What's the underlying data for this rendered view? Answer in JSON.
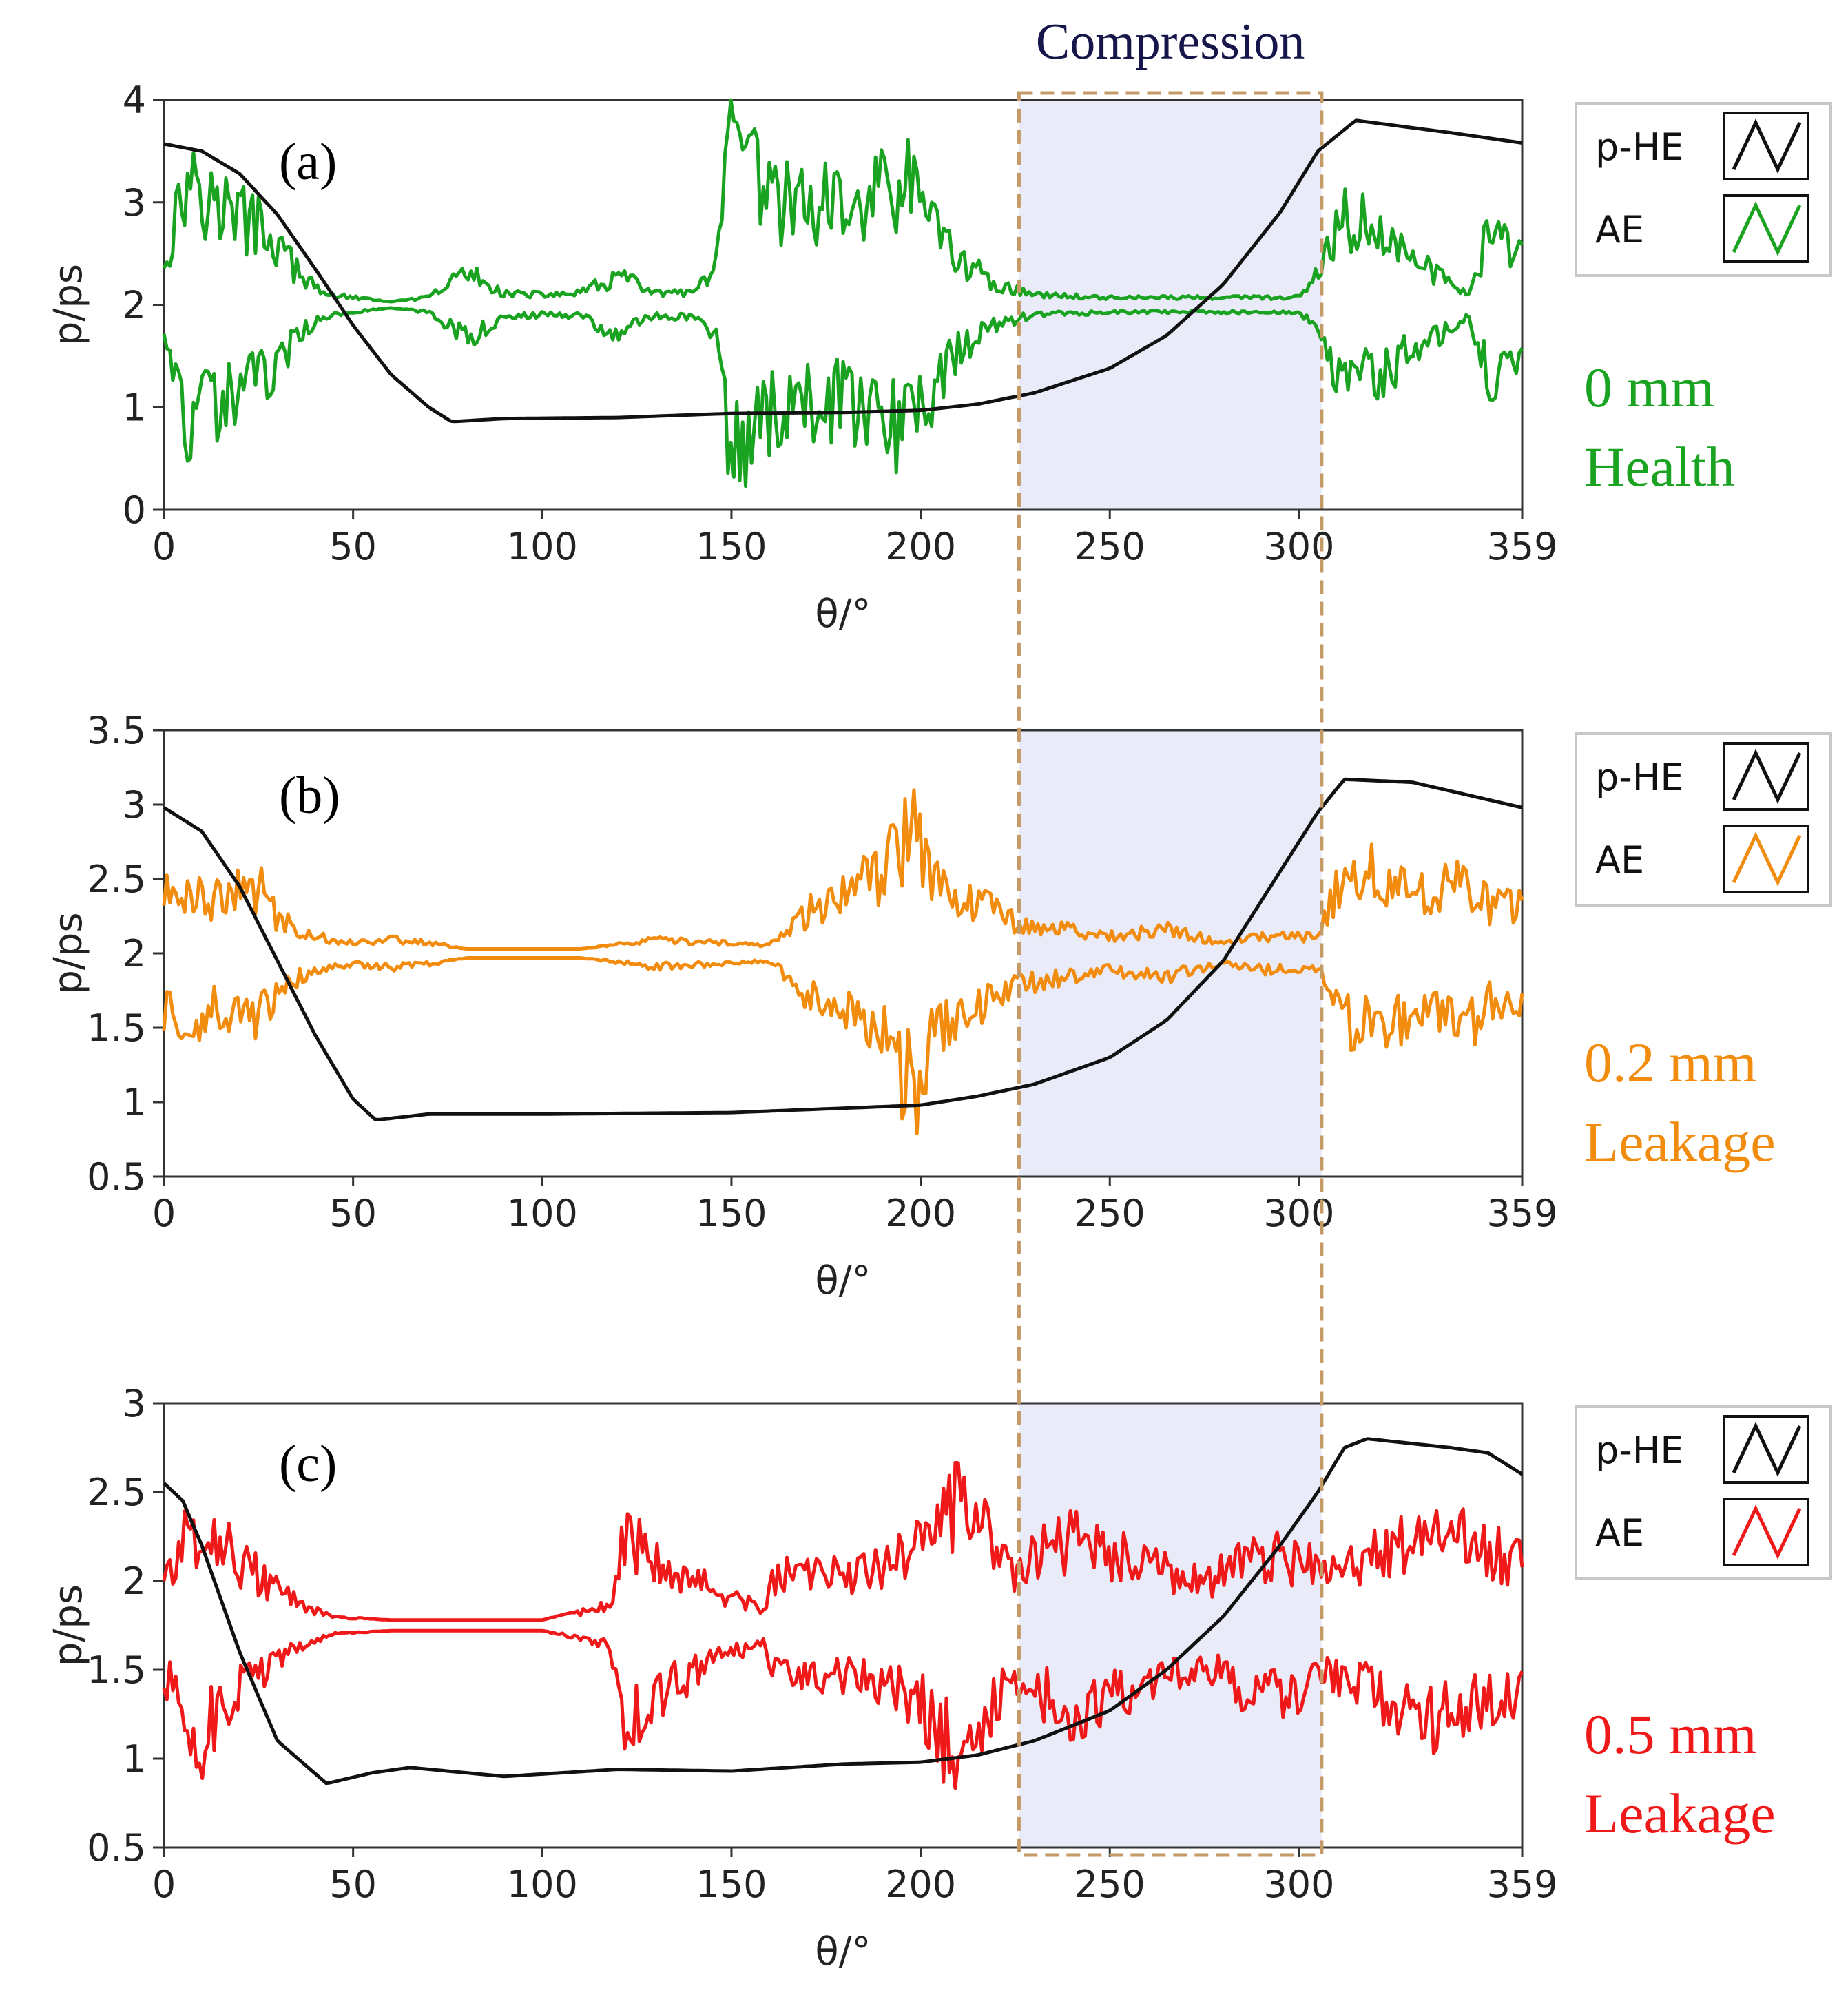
{
  "chart_data": [
    {
      "type": "line",
      "panel": "(a)",
      "condition": "0 mm",
      "state": "Health",
      "color": "#1aa321",
      "xlabel": "θ/°",
      "ylabel": "p/ps",
      "xlim": [
        0,
        359
      ],
      "ylim": [
        0,
        4
      ],
      "xticks": [
        "0",
        "50",
        "100",
        "150",
        "200",
        "250",
        "300",
        "359"
      ],
      "yticks": [
        "0",
        "1",
        "2",
        "3",
        "4"
      ],
      "legend": [
        "p-HE",
        "AE"
      ],
      "center": 2.0,
      "phe": {
        "x": [
          0,
          10,
          20,
          30,
          40,
          50,
          60,
          70,
          76,
          90,
          120,
          150,
          180,
          200,
          215,
          230,
          250,
          265,
          280,
          295,
          305,
          315,
          340,
          359
        ],
        "y": [
          3.57,
          3.5,
          3.28,
          2.88,
          2.35,
          1.8,
          1.32,
          1.0,
          0.86,
          0.89,
          0.9,
          0.94,
          0.95,
          0.97,
          1.03,
          1.14,
          1.38,
          1.7,
          2.2,
          2.9,
          3.5,
          3.8,
          3.68,
          3.58
        ]
      },
      "ae_env": {
        "x": [
          0,
          8,
          12,
          20,
          28,
          36,
          42,
          50,
          60,
          70,
          80,
          90,
          100,
          110,
          120,
          130,
          140,
          146,
          150,
          160,
          180,
          195,
          200,
          210,
          220,
          230,
          250,
          280,
          300,
          305,
          312,
          320,
          330,
          345,
          350,
          359
        ],
        "a": [
          0.5,
          1.7,
          1.2,
          1.0,
          0.8,
          0.3,
          0.1,
          0.05,
          0.0,
          0.05,
          0.35,
          0.1,
          0.08,
          0.1,
          0.3,
          0.1,
          0.1,
          0.4,
          1.85,
          1.2,
          1.1,
          1.4,
          1.2,
          0.5,
          0.2,
          0.08,
          0.05,
          0.05,
          0.05,
          0.3,
          0.95,
          0.85,
          0.5,
          0.1,
          0.8,
          0.5
        ]
      }
    },
    {
      "type": "line",
      "panel": "(b)",
      "condition": "0.2 mm",
      "state": "Leakage",
      "color": "#f28c0f",
      "xlabel": "θ/°",
      "ylabel": "p/ps",
      "xlim": [
        0,
        359
      ],
      "ylim": [
        0.5,
        3.5
      ],
      "xticks": [
        "0",
        "50",
        "100",
        "150",
        "200",
        "250",
        "300",
        "359"
      ],
      "yticks": [
        "0.5",
        "1",
        "1.5",
        "2",
        "2.5",
        "3",
        "3.5"
      ],
      "legend": [
        "p-HE",
        "AE"
      ],
      "center": 2.0,
      "phe": {
        "x": [
          0,
          10,
          20,
          30,
          40,
          50,
          56,
          70,
          100,
          150,
          200,
          215,
          230,
          250,
          265,
          280,
          295,
          305,
          312,
          330,
          359
        ],
        "y": [
          2.98,
          2.82,
          2.45,
          1.95,
          1.45,
          1.02,
          0.88,
          0.92,
          0.92,
          0.93,
          0.98,
          1.04,
          1.12,
          1.3,
          1.55,
          1.95,
          2.55,
          2.95,
          3.17,
          3.15,
          2.98
        ]
      },
      "ae_env": {
        "x": [
          0,
          6,
          15,
          25,
          30,
          40,
          50,
          60,
          70,
          80,
          110,
          130,
          160,
          170,
          180,
          190,
          198,
          205,
          215,
          225,
          235,
          250,
          265,
          280,
          290,
          305,
          310,
          320,
          330,
          345,
          350,
          359
        ],
        "a": [
          0.42,
          0.5,
          0.4,
          0.5,
          0.25,
          0.1,
          0.05,
          0.08,
          0.05,
          0.0,
          0.0,
          0.07,
          0.03,
          0.3,
          0.45,
          0.6,
          1.1,
          0.55,
          0.4,
          0.22,
          0.18,
          0.1,
          0.15,
          0.05,
          0.1,
          0.1,
          0.5,
          0.6,
          0.45,
          0.55,
          0.35,
          0.35
        ]
      }
    },
    {
      "type": "line",
      "panel": "(c)",
      "condition": "0.5 mm",
      "state": "Leakage",
      "color": "#f01919",
      "xlabel": "θ/°",
      "ylabel": "p/ps",
      "xlim": [
        0,
        359
      ],
      "ylim": [
        0.5,
        3
      ],
      "xticks": [
        "0",
        "50",
        "100",
        "150",
        "200",
        "250",
        "300",
        "359"
      ],
      "yticks": [
        "0.5",
        "1",
        "1.5",
        "2",
        "2.5",
        "3"
      ],
      "legend": [
        "p-HE",
        "AE"
      ],
      "center": 1.75,
      "phe": {
        "x": [
          0,
          5,
          10,
          20,
          30,
          43,
          55,
          65,
          90,
          120,
          150,
          180,
          200,
          215,
          230,
          250,
          265,
          280,
          295,
          305,
          312,
          318,
          340,
          350,
          359
        ],
        "y": [
          2.55,
          2.45,
          2.2,
          1.6,
          1.1,
          0.86,
          0.92,
          0.95,
          0.9,
          0.94,
          0.93,
          0.97,
          0.98,
          1.02,
          1.1,
          1.27,
          1.5,
          1.8,
          2.2,
          2.5,
          2.75,
          2.8,
          2.75,
          2.72,
          2.6
        ]
      },
      "ae_env": {
        "x": [
          0,
          10,
          20,
          30,
          38,
          45,
          60,
          100,
          110,
          118,
          122,
          130,
          145,
          158,
          162,
          175,
          190,
          200,
          210,
          220,
          225,
          240,
          260,
          275,
          290,
          300,
          310,
          330,
          340,
          345,
          359
        ],
        "a": [
          0.3,
          0.7,
          0.4,
          0.2,
          0.08,
          0.02,
          0.0,
          0.0,
          0.05,
          0.1,
          0.6,
          0.45,
          0.2,
          0.08,
          0.3,
          0.3,
          0.35,
          0.5,
          0.85,
          0.45,
          0.35,
          0.55,
          0.35,
          0.25,
          0.45,
          0.4,
          0.3,
          0.55,
          0.6,
          0.5,
          0.4
        ]
      }
    }
  ],
  "compression_label": "Compression",
  "compression_range": [
    226,
    306
  ]
}
